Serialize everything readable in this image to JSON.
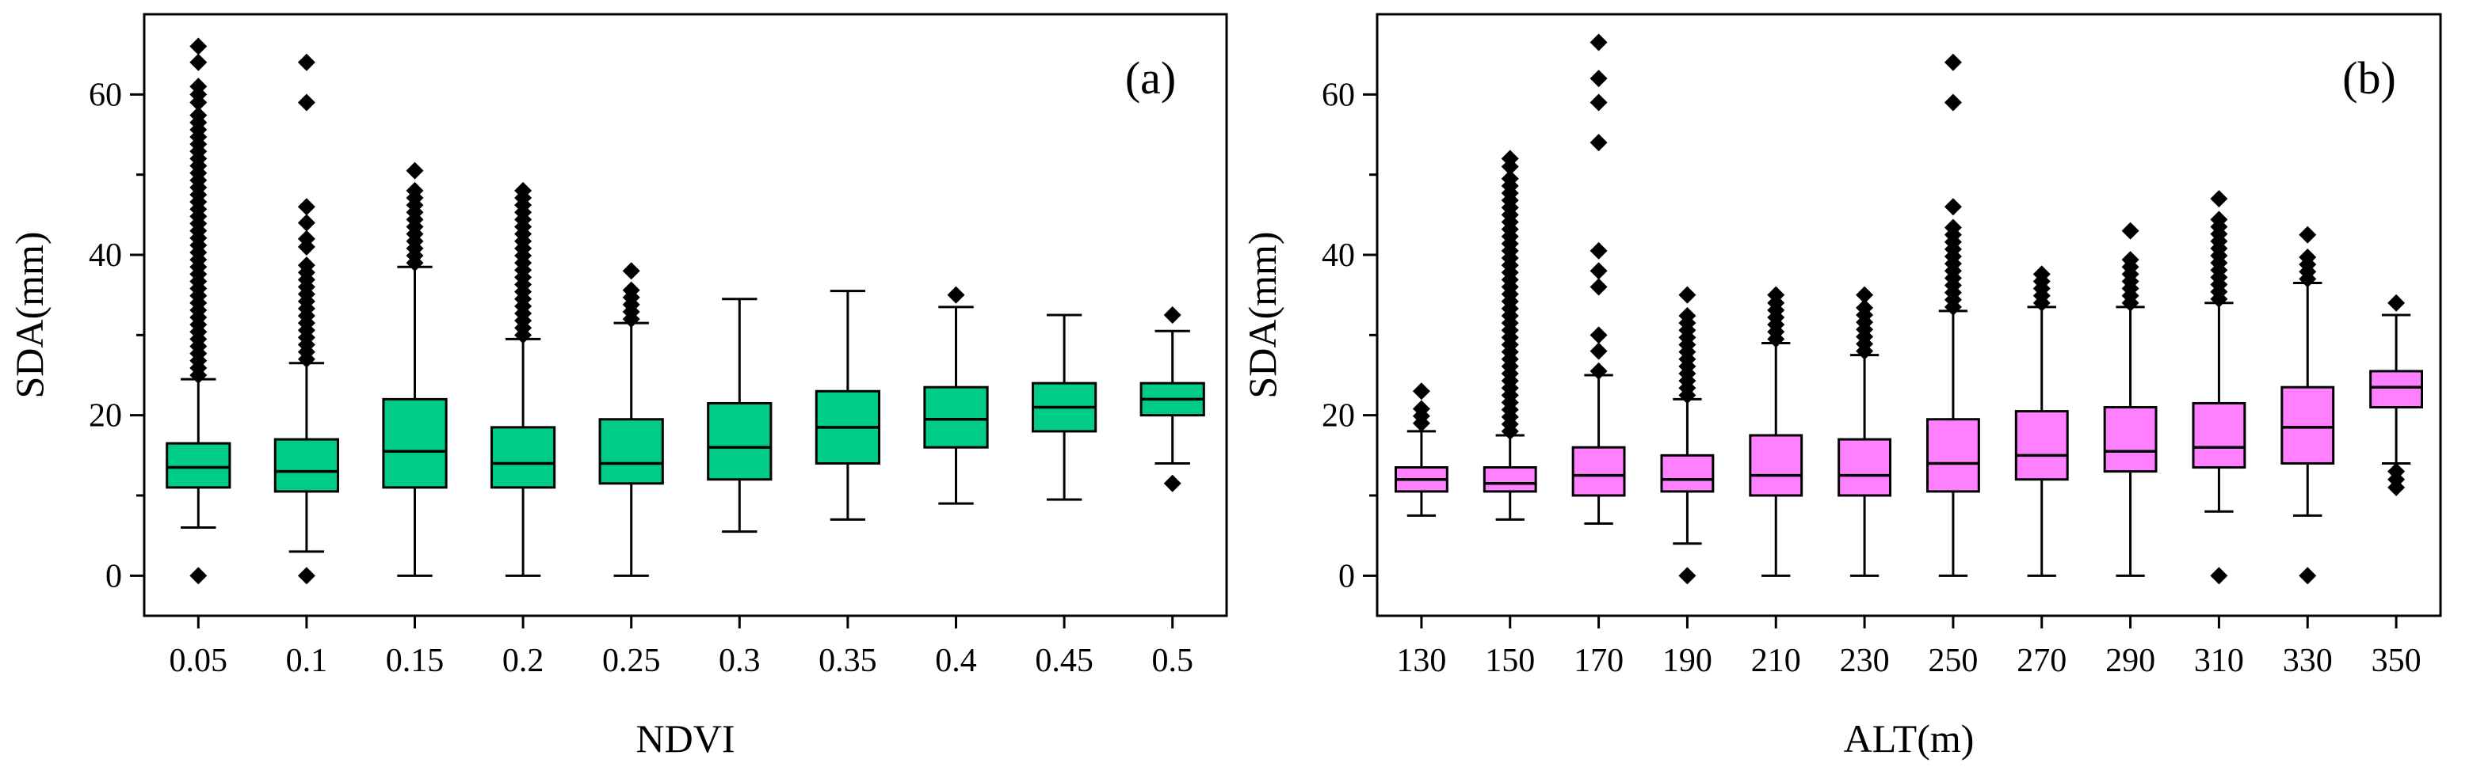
{
  "chart_data": [
    {
      "type": "boxplot",
      "panel_label": "(a)",
      "xlabel": "NDVI",
      "ylabel": "SDA(mm)",
      "ylim": [
        -5,
        70
      ],
      "yticks": [
        0,
        20,
        40,
        60
      ],
      "categories": [
        "0.05",
        "0.1",
        "0.15",
        "0.2",
        "0.25",
        "0.3",
        "0.35",
        "0.4",
        "0.45",
        "0.5"
      ],
      "box_color": "#00cc88",
      "boxes": [
        {
          "whisker_low": 6,
          "q1": 11,
          "median": 13.5,
          "q3": 16.5,
          "whisker_high": 24.5,
          "outliers_low": [
            0
          ],
          "outlier_band": [
            25,
            58
          ],
          "outliers_high": [
            59,
            60,
            61,
            64,
            66
          ]
        },
        {
          "whisker_low": 3,
          "q1": 10.5,
          "median": 13,
          "q3": 17,
          "whisker_high": 26.5,
          "outliers_low": [
            0
          ],
          "outlier_band": [
            27,
            39
          ],
          "outliers_high": [
            41,
            42,
            44,
            46,
            59,
            64
          ]
        },
        {
          "whisker_low": 0,
          "q1": 11,
          "median": 15.5,
          "q3": 22,
          "whisker_high": 38.5,
          "outliers_low": [],
          "outlier_band": [
            39,
            48
          ],
          "outliers_high": [
            50.5
          ]
        },
        {
          "whisker_low": 0,
          "q1": 11,
          "median": 14,
          "q3": 18.5,
          "whisker_high": 29.5,
          "outliers_low": [],
          "outlier_band": [
            30,
            47.5
          ],
          "outliers_high": [
            48
          ]
        },
        {
          "whisker_low": 0,
          "q1": 11.5,
          "median": 14,
          "q3": 19.5,
          "whisker_high": 31.5,
          "outliers_low": [],
          "outlier_band": [
            32,
            36
          ],
          "outliers_high": [
            38
          ]
        },
        {
          "whisker_low": 5.5,
          "q1": 12,
          "median": 16,
          "q3": 21.5,
          "whisker_high": 34.5,
          "outliers_low": [],
          "outlier_band": null,
          "outliers_high": []
        },
        {
          "whisker_low": 7,
          "q1": 14,
          "median": 18.5,
          "q3": 23,
          "whisker_high": 35.5,
          "outliers_low": [],
          "outlier_band": null,
          "outliers_high": []
        },
        {
          "whisker_low": 9,
          "q1": 16,
          "median": 19.5,
          "q3": 23.5,
          "whisker_high": 33.5,
          "outliers_low": [],
          "outlier_band": null,
          "outliers_high": [
            35
          ]
        },
        {
          "whisker_low": 9.5,
          "q1": 18,
          "median": 21,
          "q3": 24,
          "whisker_high": 32.5,
          "outliers_low": [],
          "outlier_band": null,
          "outliers_high": []
        },
        {
          "whisker_low": 14,
          "q1": 20,
          "median": 22,
          "q3": 24,
          "whisker_high": 30.5,
          "outliers_low": [
            11.5
          ],
          "outlier_band": null,
          "outliers_high": [
            32.5
          ]
        }
      ]
    },
    {
      "type": "boxplot",
      "panel_label": "(b)",
      "xlabel": "ALT(m)",
      "ylabel": "SDA(mm)",
      "ylim": [
        -5,
        70
      ],
      "yticks": [
        0,
        20,
        40,
        60
      ],
      "categories": [
        "130",
        "150",
        "170",
        "190",
        "210",
        "230",
        "250",
        "270",
        "290",
        "310",
        "330",
        "350"
      ],
      "box_color": "#ff80ff",
      "boxes": [
        {
          "whisker_low": 7.5,
          "q1": 10.5,
          "median": 12,
          "q3": 13.5,
          "whisker_high": 18,
          "outliers_low": [],
          "outlier_band": [
            19,
            21
          ],
          "outliers_high": [
            23
          ]
        },
        {
          "whisker_low": 7,
          "q1": 10.5,
          "median": 11.5,
          "q3": 13.5,
          "whisker_high": 17.5,
          "outliers_low": [],
          "outlier_band": [
            18,
            50
          ],
          "outliers_high": [
            51,
            52
          ]
        },
        {
          "whisker_low": 6.5,
          "q1": 10,
          "median": 12.5,
          "q3": 16,
          "whisker_high": 25,
          "outliers_low": [],
          "outlier_band": null,
          "outliers_high": [
            25.5,
            28,
            30,
            36,
            38,
            40.5,
            54,
            59,
            62,
            66.5
          ]
        },
        {
          "whisker_low": 4,
          "q1": 10.5,
          "median": 12,
          "q3": 15,
          "whisker_high": 22,
          "outliers_low": [
            0
          ],
          "outlier_band": [
            22.5,
            33
          ],
          "outliers_high": [
            35
          ]
        },
        {
          "whisker_low": 0,
          "q1": 10,
          "median": 12.5,
          "q3": 17.5,
          "whisker_high": 29,
          "outliers_low": [],
          "outlier_band": [
            29.5,
            34
          ],
          "outliers_high": [
            35
          ]
        },
        {
          "whisker_low": 0,
          "q1": 10,
          "median": 12.5,
          "q3": 17,
          "whisker_high": 27.5,
          "outliers_low": [],
          "outlier_band": [
            28,
            34
          ],
          "outliers_high": [
            35
          ]
        },
        {
          "whisker_low": 0,
          "q1": 10.5,
          "median": 14,
          "q3": 19.5,
          "whisker_high": 33,
          "outliers_low": [],
          "outlier_band": [
            33.5,
            44
          ],
          "outliers_high": [
            46,
            59,
            64
          ]
        },
        {
          "whisker_low": 0,
          "q1": 12,
          "median": 15,
          "q3": 20.5,
          "whisker_high": 33.5,
          "outliers_low": [],
          "outlier_band": [
            34,
            38
          ],
          "outliers_high": []
        },
        {
          "whisker_low": 0,
          "q1": 13,
          "median": 15.5,
          "q3": 21,
          "whisker_high": 33.5,
          "outliers_low": [],
          "outlier_band": [
            34,
            40
          ],
          "outliers_high": [
            43
          ]
        },
        {
          "whisker_low": 8,
          "q1": 13.5,
          "median": 16,
          "q3": 21.5,
          "whisker_high": 34,
          "outliers_low": [
            0
          ],
          "outlier_band": [
            34.5,
            45
          ],
          "outliers_high": [
            47
          ]
        },
        {
          "whisker_low": 7.5,
          "q1": 14,
          "median": 18.5,
          "q3": 23.5,
          "whisker_high": 36.5,
          "outliers_low": [
            0
          ],
          "outlier_band": [
            37,
            40
          ],
          "outliers_high": [
            42.5
          ]
        },
        {
          "whisker_low": 14,
          "q1": 21,
          "median": 23.5,
          "q3": 25.5,
          "whisker_high": 32.5,
          "outliers_low": [
            11,
            12,
            13
          ],
          "outlier_band": null,
          "outliers_high": [
            34
          ]
        }
      ]
    }
  ]
}
